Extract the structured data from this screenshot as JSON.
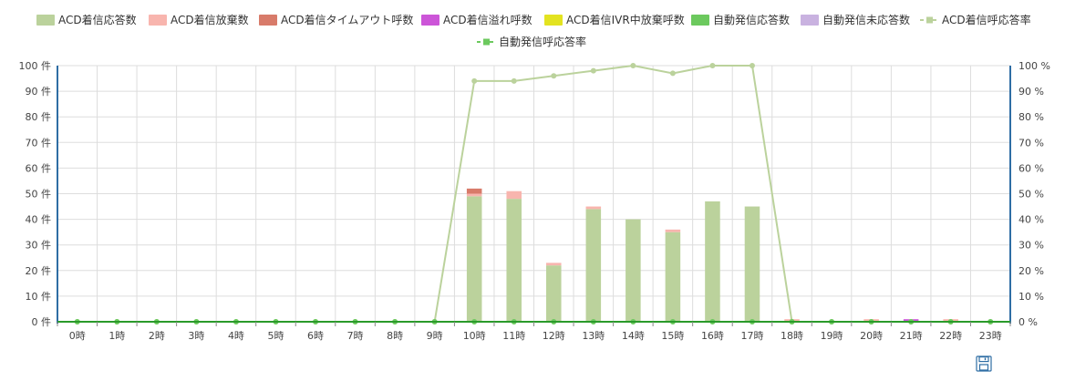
{
  "chart_data": {
    "type": "bar",
    "categories": [
      "0時",
      "1時",
      "2時",
      "3時",
      "4時",
      "5時",
      "6時",
      "7時",
      "8時",
      "9時",
      "10時",
      "11時",
      "12時",
      "13時",
      "14時",
      "15時",
      "16時",
      "17時",
      "18時",
      "19時",
      "20時",
      "21時",
      "22時",
      "23時"
    ],
    "series": [
      {
        "name": "ACD着信応答数",
        "kind": "bar",
        "color": "#bbd29c",
        "axis": "left",
        "values": [
          0,
          0,
          0,
          0,
          0,
          0,
          0,
          0,
          0,
          0,
          49,
          48,
          22,
          44,
          40,
          35,
          47,
          45,
          0,
          0,
          0,
          0,
          0,
          0
        ]
      },
      {
        "name": "ACD着信放棄数",
        "kind": "bar",
        "color": "#f8b5ae",
        "axis": "left",
        "values": [
          0,
          0,
          0,
          0,
          0,
          0,
          0,
          0,
          0,
          0,
          1,
          3,
          1,
          1,
          0,
          1,
          0,
          0,
          1,
          0,
          1,
          0,
          1,
          0
        ]
      },
      {
        "name": "ACD着信タイムアウト呼数",
        "kind": "bar",
        "color": "#d87b6a",
        "axis": "left",
        "values": [
          0,
          0,
          0,
          0,
          0,
          0,
          0,
          0,
          0,
          0,
          2,
          0,
          0,
          0,
          0,
          0,
          0,
          0,
          0,
          0,
          0,
          0,
          0,
          0
        ]
      },
      {
        "name": "ACD着信溢れ呼数",
        "kind": "bar",
        "color": "#cc55d8",
        "axis": "left",
        "values": [
          0,
          0,
          0,
          0,
          0,
          0,
          0,
          0,
          0,
          0,
          0,
          0,
          0,
          0,
          0,
          0,
          0,
          0,
          0,
          0,
          0,
          1,
          0,
          0
        ]
      },
      {
        "name": "ACD着信IVR中放棄呼数",
        "kind": "bar",
        "color": "#e3e320",
        "axis": "left",
        "values": [
          0,
          0,
          0,
          0,
          0,
          0,
          0,
          0,
          0,
          0,
          0,
          0,
          0,
          0,
          0,
          0,
          0,
          0,
          0,
          0,
          0,
          0,
          0,
          0
        ]
      },
      {
        "name": "自動発信応答数",
        "kind": "bar",
        "color": "#6cc95e",
        "axis": "left",
        "values": [
          0,
          0,
          0,
          0,
          0,
          0,
          0,
          0,
          0,
          0,
          0,
          0,
          0,
          0,
          0,
          0,
          0,
          0,
          0,
          0,
          0,
          0,
          0,
          0
        ]
      },
      {
        "name": "自動発信未応答数",
        "kind": "bar",
        "color": "#c9b2e0",
        "axis": "left",
        "values": [
          0,
          0,
          0,
          0,
          0,
          0,
          0,
          0,
          0,
          0,
          0,
          0,
          0,
          0,
          0,
          0,
          0,
          0,
          0,
          0,
          0,
          0,
          0,
          0
        ]
      },
      {
        "name": "ACD着信呼応答率",
        "kind": "line",
        "color": "#bbd29c",
        "axis": "right",
        "values": [
          0,
          0,
          0,
          0,
          0,
          0,
          0,
          0,
          0,
          0,
          94,
          94,
          96,
          98,
          100,
          97,
          100,
          100,
          0,
          0,
          0,
          0,
          0,
          0
        ]
      },
      {
        "name": "自動発信呼応答率",
        "kind": "line",
        "color": "#6cc95e",
        "axis": "right",
        "values": [
          0,
          0,
          0,
          0,
          0,
          0,
          0,
          0,
          0,
          0,
          0,
          0,
          0,
          0,
          0,
          0,
          0,
          0,
          0,
          0,
          0,
          0,
          0,
          0
        ]
      }
    ],
    "yleft": {
      "min": 0,
      "max": 100,
      "step": 10,
      "unit": "件"
    },
    "yright": {
      "min": 0,
      "max": 100,
      "step": 10,
      "unit": "%"
    },
    "legend_position": "top",
    "grid": true,
    "colors": {
      "axis": "#2e6da4",
      "baseline": "#2a9a2a",
      "grid": "#dddddd"
    }
  },
  "toolbar": {
    "save_icon": "save-icon"
  }
}
